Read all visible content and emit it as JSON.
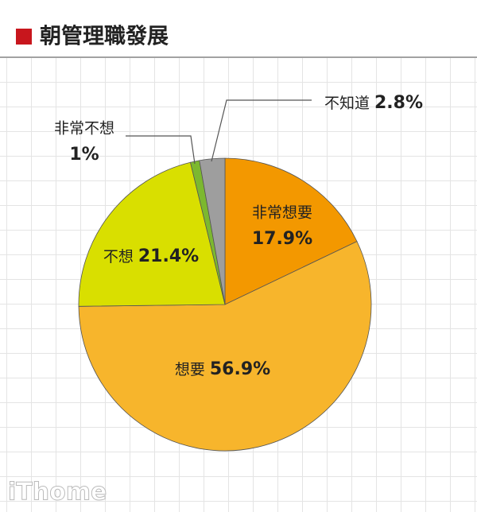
{
  "chart_data": {
    "type": "pie",
    "title": "朝管理職發展",
    "categories": [
      "非常想要",
      "想要",
      "不想",
      "非常不想",
      "不知道"
    ],
    "values": [
      17.9,
      56.9,
      21.4,
      1,
      2.8
    ],
    "value_labels": [
      "17.9%",
      "56.9%",
      "21.4%",
      "1%",
      "2.8%"
    ],
    "colors": [
      "#f39800",
      "#f7b52c",
      "#d9df00",
      "#7cb82f",
      "#9e9e9e"
    ]
  },
  "watermark": "iThome"
}
